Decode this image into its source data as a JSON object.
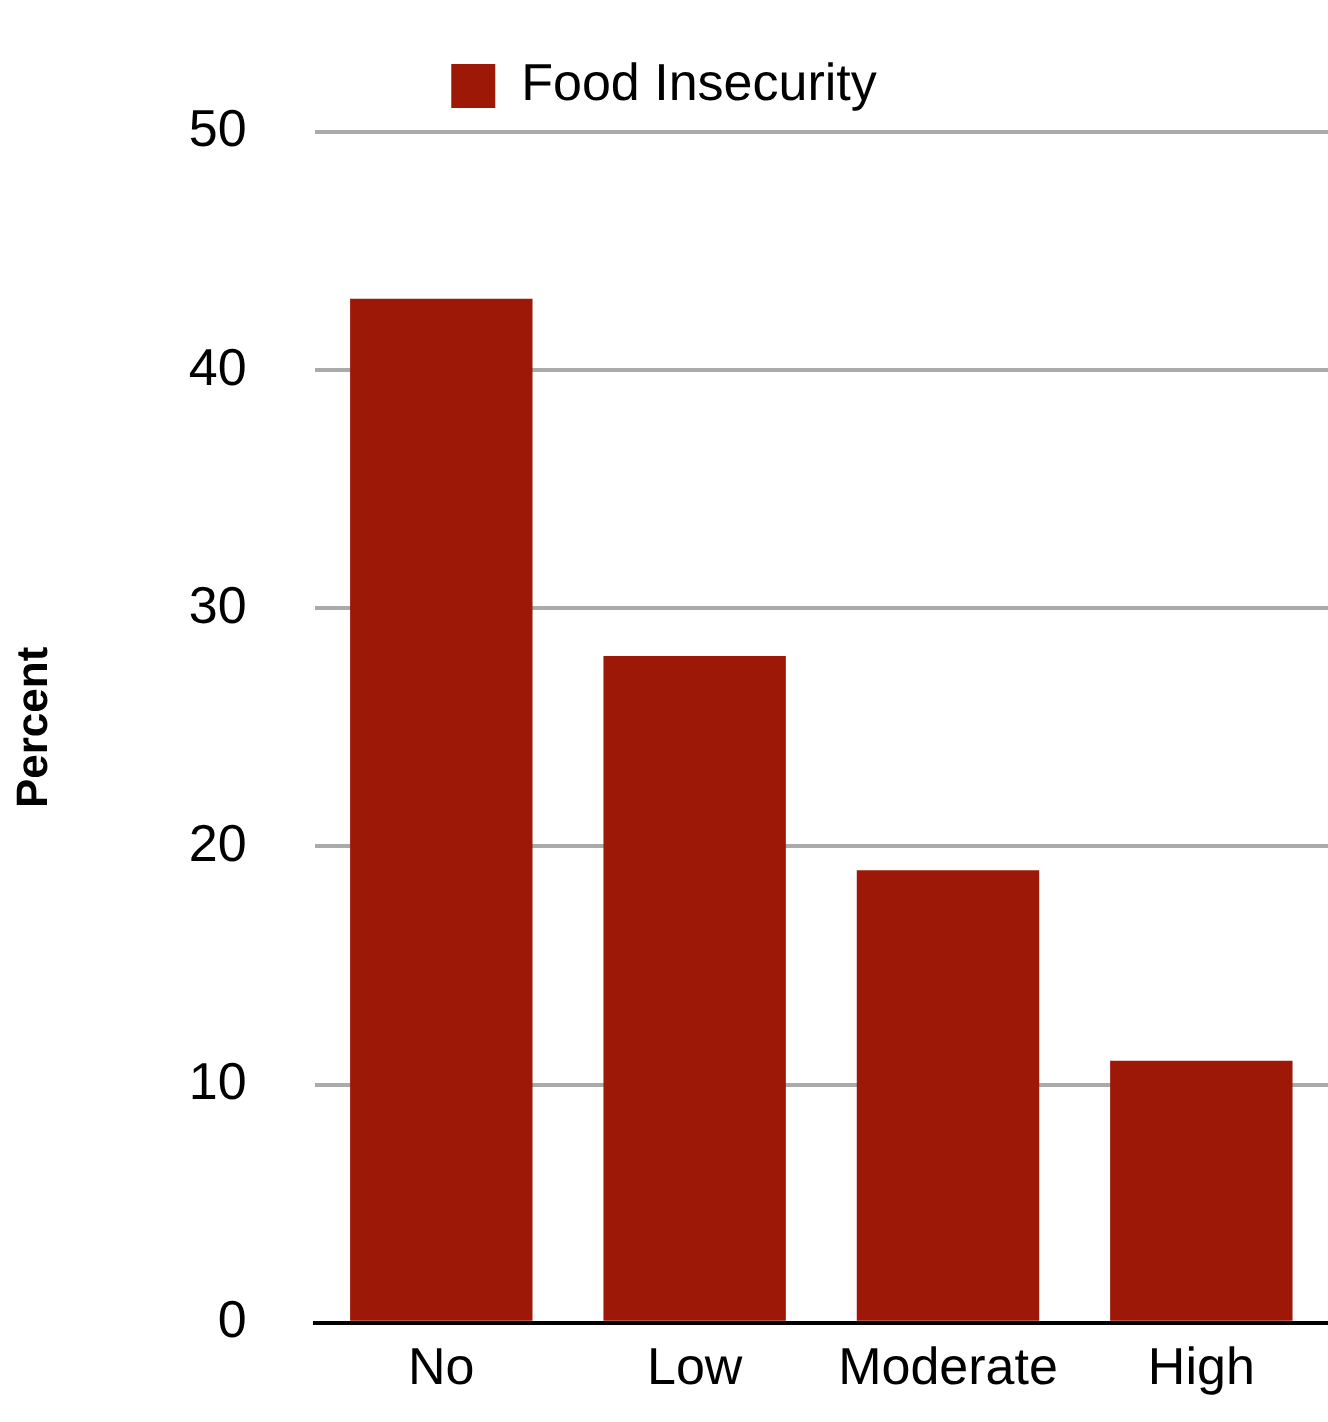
{
  "chart_data": {
    "type": "bar",
    "ylabel": "Percent",
    "categories": [
      "No",
      "Low",
      "Moderate",
      "High"
    ],
    "series": [
      {
        "name": "Food Insecurity",
        "color": "#9e1808",
        "values": [
          43,
          28,
          19,
          11
        ]
      }
    ],
    "ylim": [
      0,
      50
    ],
    "yticks": [
      0,
      10,
      20,
      30,
      40,
      50
    ],
    "grid": "y",
    "legend": "top"
  }
}
